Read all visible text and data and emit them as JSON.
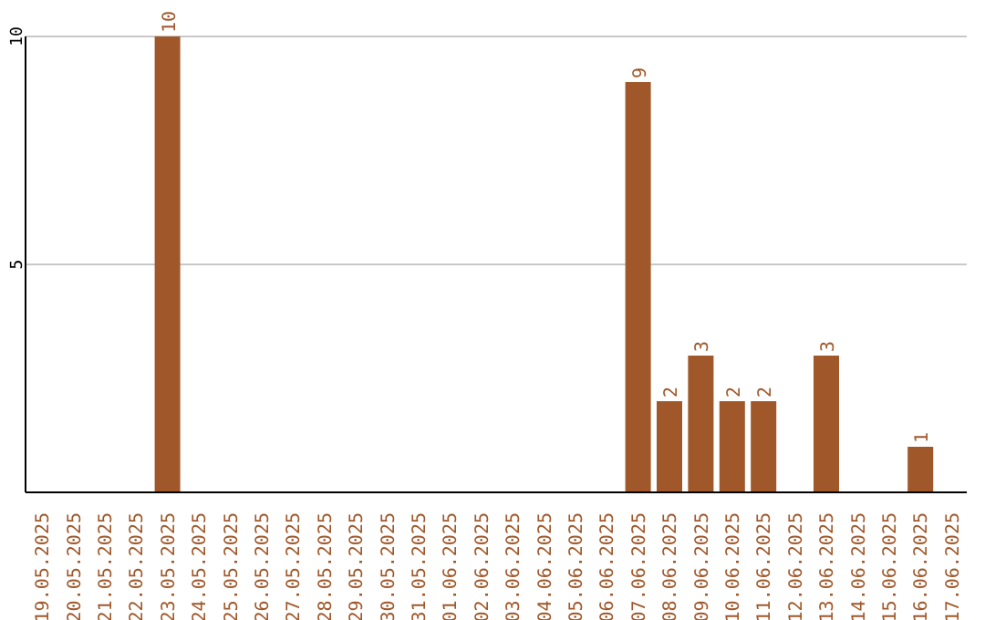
{
  "chart_data": {
    "type": "bar",
    "categories": [
      "19.05.2025",
      "20.05.2025",
      "21.05.2025",
      "22.05.2025",
      "23.05.2025",
      "24.05.2025",
      "25.05.2025",
      "26.05.2025",
      "27.05.2025",
      "28.05.2025",
      "29.05.2025",
      "30.05.2025",
      "31.05.2025",
      "01.06.2025",
      "02.06.2025",
      "03.06.2025",
      "04.06.2025",
      "05.06.2025",
      "06.06.2025",
      "07.06.2025",
      "08.06.2025",
      "09.06.2025",
      "10.06.2025",
      "11.06.2025",
      "12.06.2025",
      "13.06.2025",
      "14.06.2025",
      "15.06.2025",
      "16.06.2025",
      "17.06.2025"
    ],
    "values": [
      0,
      0,
      0,
      0,
      10,
      0,
      0,
      0,
      0,
      0,
      0,
      0,
      0,
      0,
      0,
      0,
      0,
      0,
      0,
      9,
      2,
      3,
      2,
      2,
      0,
      3,
      0,
      0,
      1,
      0
    ],
    "value_labels": [
      null,
      null,
      null,
      null,
      "10",
      null,
      null,
      null,
      null,
      null,
      null,
      null,
      null,
      null,
      null,
      null,
      null,
      null,
      null,
      "9",
      "2",
      "3",
      "2",
      "2",
      null,
      "3",
      null,
      null,
      "1",
      null
    ],
    "color": "#a0582a",
    "ylim": [
      0,
      10
    ],
    "yticks": [
      5,
      10
    ],
    "grid": "y"
  }
}
